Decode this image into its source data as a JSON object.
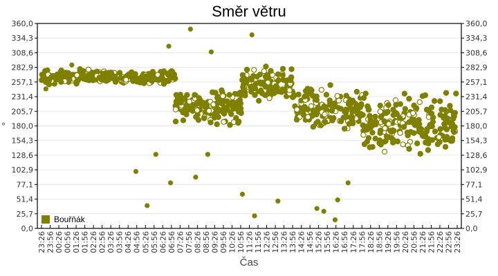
{
  "chart_data": {
    "type": "scatter",
    "title": "Směr větru",
    "xlabel": "Čas",
    "ylabel": "°",
    "ylim": [
      0,
      360
    ],
    "y_ticks": [
      "0,0",
      "25,7",
      "51,4",
      "77,1",
      "102,9",
      "128,6",
      "154,3",
      "180,0",
      "205,7",
      "231,4",
      "257,1",
      "282,9",
      "308,6",
      "334,3",
      "360,0"
    ],
    "x_ticks": [
      "23:26",
      "23:56",
      "00:26",
      "00:56",
      "01:26",
      "01:56",
      "02:26",
      "02:56",
      "03:26",
      "03:56",
      "04:26",
      "04:56",
      "05:26",
      "05:56",
      "06:26",
      "06:56",
      "07:26",
      "07:56",
      "08:26",
      "08:56",
      "09:26",
      "09:56",
      "10:26",
      "10:56",
      "11:26",
      "11:56",
      "12:26",
      "12:56",
      "13:26",
      "13:56",
      "14:26",
      "14:56",
      "15:26",
      "15:56",
      "16:26",
      "16:56",
      "17:26",
      "17:56",
      "18:26",
      "18:56",
      "19:26",
      "19:56",
      "20:26",
      "20:56",
      "21:26",
      "21:56",
      "22:26",
      "22:56",
      "23:26"
    ],
    "grid": true,
    "legend_position": "bottom-left-inside",
    "series": [
      {
        "name": "Bouřňák",
        "color": "#808000",
        "segments": [
          {
            "from": "23:26",
            "to": "07:10",
            "center": 266,
            "spread": 10,
            "outliers": [
              [
                0.5,
                245
              ],
              [
                3.5,
                287
              ],
              [
                25,
                240
              ]
            ]
          },
          {
            "from": "07:10",
            "to": "11:00",
            "center": 215,
            "spread": 25,
            "outliers": [
              [
                10.9,
                100
              ],
              [
                12.2,
                40
              ],
              [
                13.2,
                130
              ],
              [
                14.9,
                80
              ],
              [
                14.7,
                320
              ]
            ]
          },
          {
            "from": "11:00",
            "to": "14:00",
            "center": 250,
            "spread": 25,
            "outliers": [
              [
                17.2,
                350
              ],
              [
                17.8,
                90
              ],
              [
                19.2,
                130
              ],
              [
                19.6,
                310
              ]
            ]
          },
          {
            "from": "14:00",
            "to": "18:00",
            "center": 210,
            "spread": 30,
            "outliers": [
              [
                23.2,
                60
              ],
              [
                24.3,
                340
              ],
              [
                24.6,
                22
              ],
              [
                27.3,
                48
              ]
            ]
          },
          {
            "from": "18:00",
            "to": "23:26",
            "center": 185,
            "spread": 40,
            "outliers": [
              [
                31.8,
                35
              ],
              [
                32.6,
                30
              ],
              [
                33.9,
                15
              ],
              [
                34.2,
                50
              ],
              [
                35.4,
                80
              ]
            ]
          }
        ]
      }
    ]
  },
  "legend": {
    "label": "Bouřňák",
    "color": "#808000"
  }
}
